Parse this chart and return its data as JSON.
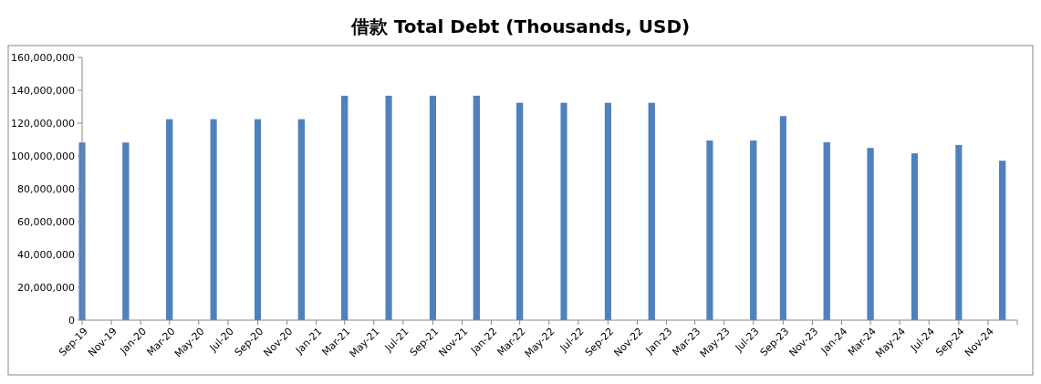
{
  "chart_data": {
    "type": "bar",
    "title": "借款 Total Debt (Thousands, USD)",
    "x": [
      "2019-09",
      "2019-12",
      "2020-03",
      "2020-06",
      "2020-09",
      "2020-12",
      "2021-03",
      "2021-06",
      "2021-09",
      "2021-12",
      "2022-03",
      "2022-06",
      "2022-09",
      "2022-12",
      "2023-04",
      "2023-07",
      "2023-09",
      "2023-12",
      "2024-03",
      "2024-06",
      "2024-09",
      "2024-12"
    ],
    "series": [
      {
        "color": "#4f81bd",
        "values": [
          108200000,
          108200000,
          122400000,
          122400000,
          122400000,
          122400000,
          136700000,
          136700000,
          136700000,
          136700000,
          132400000,
          132400000,
          132400000,
          132400000,
          109400000,
          109400000,
          124300000,
          108400000,
          104900000,
          101600000,
          106700000,
          97100000
        ]
      }
    ],
    "xlim": [
      "2019-09",
      "2025-01"
    ],
    "xticks": [
      {
        "value": "2019-09",
        "label": "Sep-19"
      },
      {
        "value": "2019-11",
        "label": "Nov-19"
      },
      {
        "value": "2020-01",
        "label": "Jan-20"
      },
      {
        "value": "2020-03",
        "label": "Mar-20"
      },
      {
        "value": "2020-05",
        "label": "May-20"
      },
      {
        "value": "2020-07",
        "label": "Jul-20"
      },
      {
        "value": "2020-09",
        "label": "Sep-20"
      },
      {
        "value": "2020-11",
        "label": "Nov-20"
      },
      {
        "value": "2021-01",
        "label": "Jan-21"
      },
      {
        "value": "2021-03",
        "label": "Mar-21"
      },
      {
        "value": "2021-05",
        "label": "May-21"
      },
      {
        "value": "2021-07",
        "label": "Jul-21"
      },
      {
        "value": "2021-09",
        "label": "Sep-21"
      },
      {
        "value": "2021-11",
        "label": "Nov-21"
      },
      {
        "value": "2022-01",
        "label": "Jan-22"
      },
      {
        "value": "2022-03",
        "label": "Mar-22"
      },
      {
        "value": "2022-05",
        "label": "May-22"
      },
      {
        "value": "2022-07",
        "label": "Jul-22"
      },
      {
        "value": "2022-09",
        "label": "Sep-22"
      },
      {
        "value": "2022-11",
        "label": "Nov-22"
      },
      {
        "value": "2023-01",
        "label": "Jan-23"
      },
      {
        "value": "2023-03",
        "label": "Mar-23"
      },
      {
        "value": "2023-05",
        "label": "May-23"
      },
      {
        "value": "2023-07",
        "label": "Jul-23"
      },
      {
        "value": "2023-09",
        "label": "Sep-23"
      },
      {
        "value": "2023-11",
        "label": "Nov-23"
      },
      {
        "value": "2024-01",
        "label": "Jan-24"
      },
      {
        "value": "2024-03",
        "label": "Mar-24"
      },
      {
        "value": "2024-05",
        "label": "May-24"
      },
      {
        "value": "2024-07",
        "label": "Jul-24"
      },
      {
        "value": "2024-09",
        "label": "Sep-24"
      },
      {
        "value": "2024-11",
        "label": "Nov-24"
      },
      {
        "value": "2025-01",
        "label": null
      }
    ],
    "ylim": [
      0,
      160000000
    ],
    "yticks": [
      0,
      {
        "value": 20000000,
        "label": "20,000,000"
      },
      {
        "value": 40000000,
        "label": "40,000,000"
      },
      {
        "value": 60000000,
        "label": "60,000,000"
      },
      {
        "value": 80000000,
        "label": "80,000,000"
      },
      {
        "value": 100000000,
        "label": "100,000,000"
      },
      {
        "value": 120000000,
        "label": "120,000,000"
      },
      {
        "value": 140000000,
        "label": "140,000,000"
      },
      {
        "value": 160000000,
        "label": "160,000,000"
      }
    ],
    "grid": false
  }
}
